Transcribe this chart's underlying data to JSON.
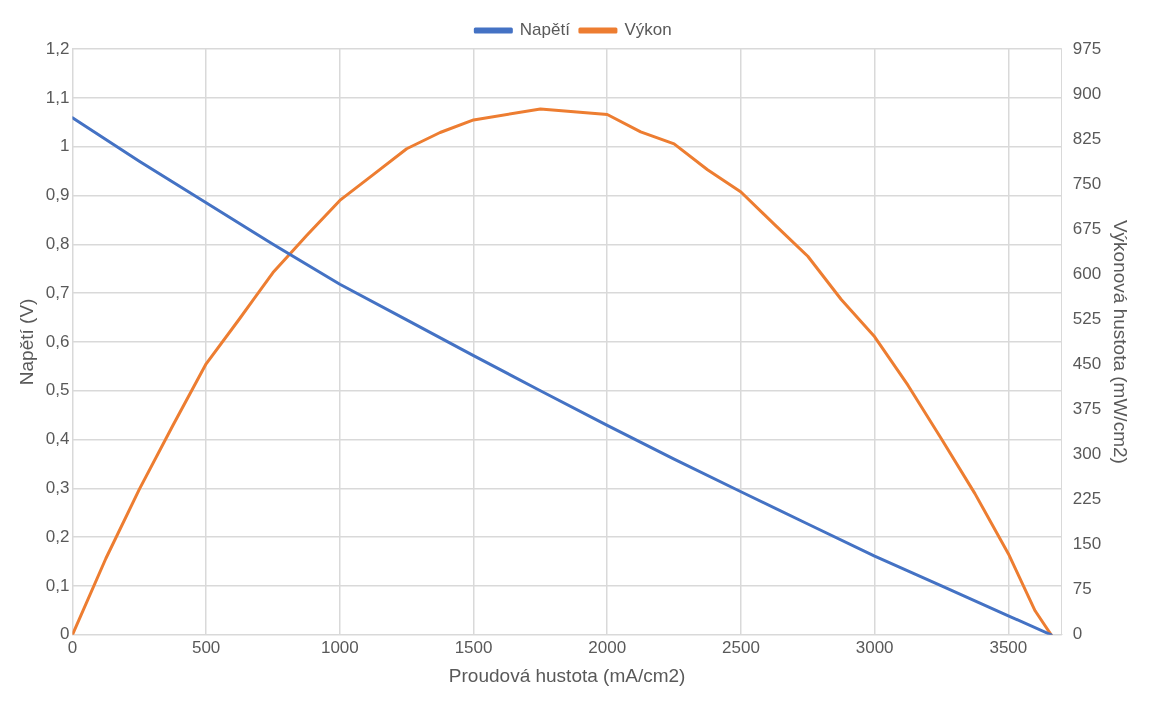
{
  "chart_data": {
    "type": "line",
    "xlabel": "Proudová hustota (mA/cm2)",
    "ylabel": "Napětí (V)",
    "y2label": "Výkonová hustota (mW/cm2)",
    "xlim": [
      0,
      3700
    ],
    "xticks": [
      0,
      500,
      1000,
      1500,
      2000,
      2500,
      3000,
      3500
    ],
    "ylim": [
      0,
      1.2
    ],
    "yticks": [
      0,
      {
        "value": 0.1,
        "label": "0,1"
      },
      {
        "value": 0.2,
        "label": "0,2"
      },
      {
        "value": 0.3,
        "label": "0,3"
      },
      {
        "value": 0.4,
        "label": "0,4"
      },
      {
        "value": 0.5,
        "label": "0,5"
      },
      {
        "value": 0.6,
        "label": "0,6"
      },
      {
        "value": 0.7,
        "label": "0,7"
      },
      {
        "value": 0.8,
        "label": "0,8"
      },
      {
        "value": 0.9,
        "label": "0,9"
      },
      1,
      {
        "value": 1.1,
        "label": "1,1"
      },
      {
        "value": 1.2,
        "label": "1,2"
      }
    ],
    "y2lim": [
      0,
      975
    ],
    "y2ticks": [
      0,
      75,
      150,
      225,
      300,
      375,
      450,
      525,
      600,
      675,
      750,
      825,
      900,
      975
    ],
    "grid": true,
    "legend": "top",
    "marker": "none",
    "line_style": "solid",
    "series": [
      {
        "name": "Napětí",
        "color": "#4472c4",
        "x": [
          0,
          250,
          500,
          750,
          1000,
          1250,
          1500,
          1750,
          2000,
          2250,
          2500,
          2750,
          3000,
          3250,
          3500,
          3660
        ],
        "values": [
          1.059,
          0.97,
          0.885,
          0.8,
          0.718,
          0.645,
          0.572,
          0.5,
          0.429,
          0.36,
          0.293,
          0.227,
          0.161,
          0.1,
          0.039,
          0
        ]
      },
      {
        "name": "Výkon",
        "color": "#ed7d31",
        "axis": "y2",
        "x": [
          0,
          125,
          250,
          375,
          500,
          625,
          750,
          875,
          1000,
          1125,
          1250,
          1375,
          1500,
          1750,
          2000,
          2125,
          2250,
          2375,
          2500,
          2625,
          2750,
          2875,
          3000,
          3125,
          3250,
          3375,
          3500,
          3600,
          3660
        ],
        "values": [
          0,
          127,
          242,
          348,
          451,
          526,
          603,
          664,
          723,
          766,
          809,
          836,
          857,
          875,
          866,
          837,
          817,
          774,
          737,
          683,
          630,
          558,
          496,
          415,
          326,
          235,
          135,
          40,
          0
        ]
      }
    ]
  }
}
